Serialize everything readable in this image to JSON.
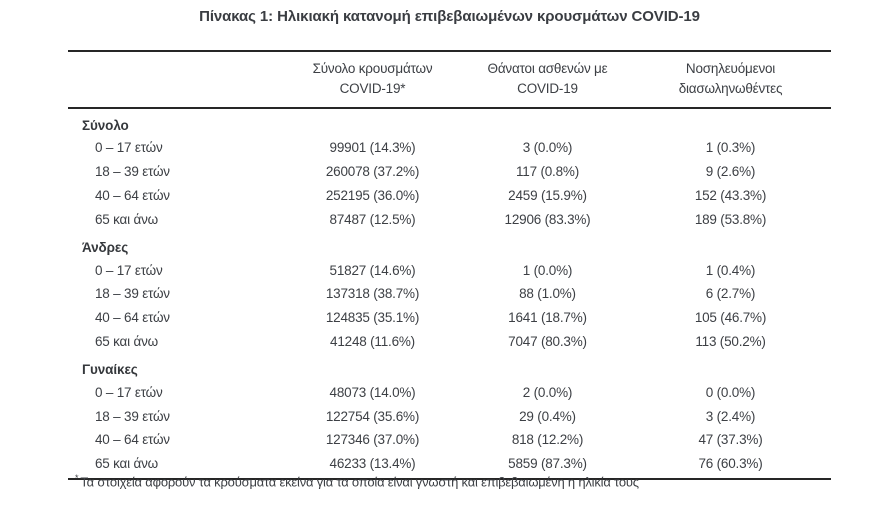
{
  "title": "Πίνακας 1: Ηλικιακή κατανομή επιβεβαιωμένων κρουσμάτων COVID-19",
  "table": {
    "columns": [
      {
        "line1": "",
        "line2": ""
      },
      {
        "line1": "Σύνολο κρουσμάτων",
        "line2": "COVID-19*"
      },
      {
        "line1": "Θάνατοι ασθενών με",
        "line2": "COVID-19"
      },
      {
        "line1": "Νοσηλευόμενοι",
        "line2": "διασωληνωθέντες"
      }
    ],
    "sections": [
      {
        "label": "Σύνολο",
        "rows": [
          {
            "age": "0 – 17 ετών",
            "cases": "99901 (14.3%)",
            "deaths": "3 (0.0%)",
            "intubated": "1 (0.3%)"
          },
          {
            "age": "18 – 39 ετών",
            "cases": "260078 (37.2%)",
            "deaths": "117 (0.8%)",
            "intubated": "9 (2.6%)"
          },
          {
            "age": "40 – 64 ετών",
            "cases": "252195 (36.0%)",
            "deaths": "2459 (15.9%)",
            "intubated": "152 (43.3%)"
          },
          {
            "age": "65 και άνω",
            "cases": "87487 (12.5%)",
            "deaths": "12906 (83.3%)",
            "intubated": "189 (53.8%)"
          }
        ]
      },
      {
        "label": "Άνδρες",
        "rows": [
          {
            "age": "0 – 17 ετών",
            "cases": "51827 (14.6%)",
            "deaths": "1 (0.0%)",
            "intubated": "1 (0.4%)"
          },
          {
            "age": "18 – 39 ετών",
            "cases": "137318 (38.7%)",
            "deaths": "88 (1.0%)",
            "intubated": "6 (2.7%)"
          },
          {
            "age": "40 – 64 ετών",
            "cases": "124835 (35.1%)",
            "deaths": "1641 (18.7%)",
            "intubated": "105 (46.7%)"
          },
          {
            "age": "65 και άνω",
            "cases": "41248 (11.6%)",
            "deaths": "7047 (80.3%)",
            "intubated": "113 (50.2%)"
          }
        ]
      },
      {
        "label": "Γυναίκες",
        "rows": [
          {
            "age": "0 – 17 ετών",
            "cases": "48073 (14.0%)",
            "deaths": "2 (0.0%)",
            "intubated": "0 (0.0%)"
          },
          {
            "age": "18 – 39 ετών",
            "cases": "122754 (35.6%)",
            "deaths": "29 (0.4%)",
            "intubated": "3 (2.4%)"
          },
          {
            "age": "40 – 64 ετών",
            "cases": "127346 (37.0%)",
            "deaths": "818 (12.2%)",
            "intubated": "47 (37.3%)"
          },
          {
            "age": "65 και άνω",
            "cases": "46233 (13.4%)",
            "deaths": "5859 (87.3%)",
            "intubated": "76 (60.3%)"
          }
        ]
      }
    ]
  },
  "footnote": {
    "marker": "*",
    "text": "Τα στοιχεία αφορούν τα κρούσματα εκείνα για τα οποία είναι γνωστή και επιβεβαιωμένη η ηλικία τους"
  },
  "colors": {
    "text": "#3d4045",
    "rule": "#262626",
    "background": "#ffffff"
  }
}
